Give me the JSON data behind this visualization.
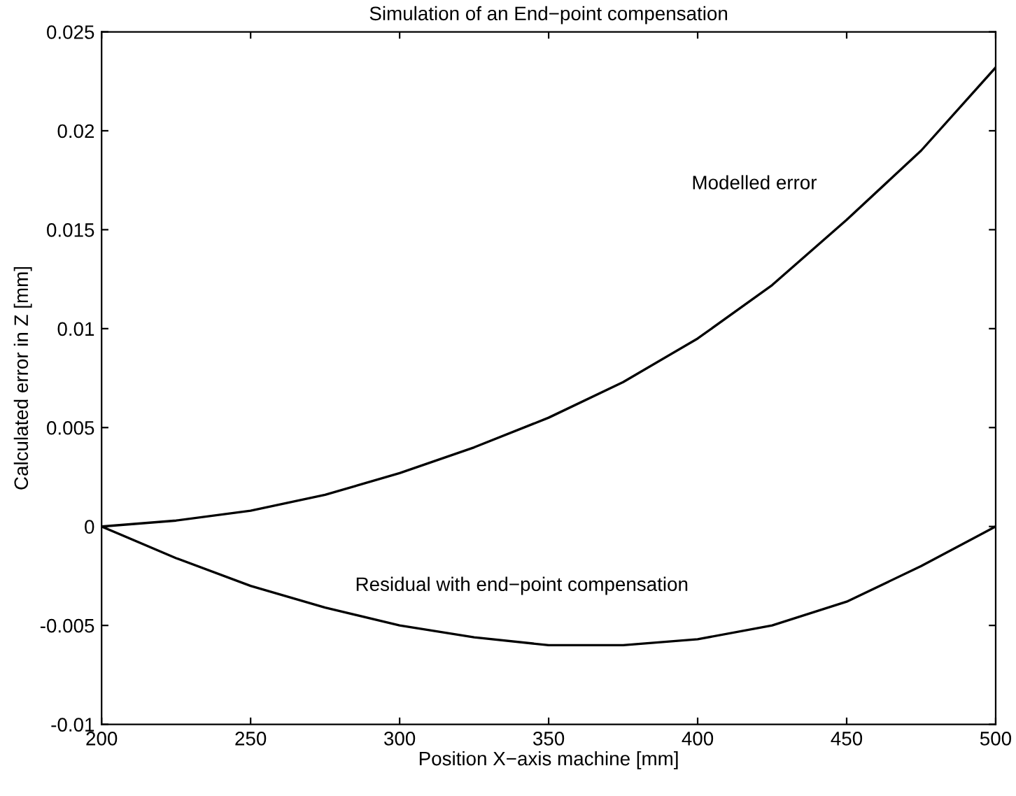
{
  "chart_data": {
    "type": "line",
    "title": "Simulation of an End−point compensation",
    "xlabel": "Position X−axis machine [mm]",
    "ylabel": "Calculated error in Z [mm]",
    "x": [
      200,
      225,
      250,
      275,
      300,
      325,
      350,
      375,
      400,
      425,
      450,
      475,
      500
    ],
    "series": [
      {
        "name": "Modelled error",
        "color": "#000000",
        "values": [
          0,
          0.0003,
          0.0008,
          0.0016,
          0.0027,
          0.004,
          0.0055,
          0.0073,
          0.0095,
          0.0122,
          0.0155,
          0.019,
          0.0232
        ]
      },
      {
        "name": "Residual with end−point compensation",
        "color": "#000000",
        "values": [
          0,
          -0.0016,
          -0.003,
          -0.0041,
          -0.005,
          -0.0056,
          -0.006,
          -0.006,
          -0.0057,
          -0.005,
          -0.0038,
          -0.002,
          0
        ]
      }
    ],
    "xlim": [
      200,
      500
    ],
    "xticks": [
      200,
      250,
      300,
      350,
      400,
      450,
      500
    ],
    "ylim": [
      -0.01,
      0.025
    ],
    "yticks": [
      -0.01,
      -0.005,
      0,
      0.005,
      0.01,
      0.015,
      0.02,
      0.025
    ],
    "grid": false,
    "legend": false,
    "marker": "none",
    "line_style": "solid"
  }
}
